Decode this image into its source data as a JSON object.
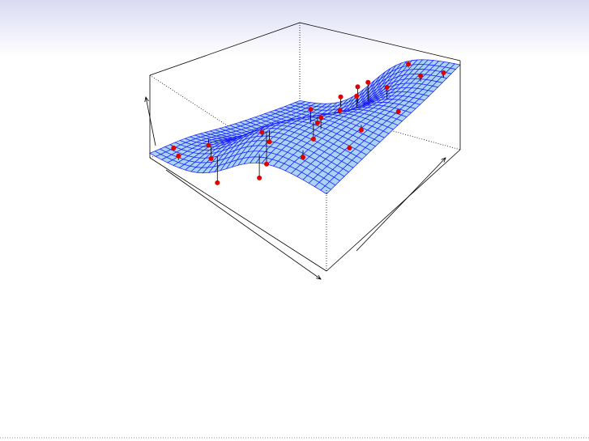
{
  "chart_data": {
    "type": "scatter3d",
    "xlim": [
      0,
      1
    ],
    "ylim": [
      0,
      1
    ],
    "zlim": [
      0,
      1
    ],
    "series": [
      {
        "color": "#e00000",
        "x": [
          0.05,
          0.08,
          0.12,
          0.18,
          0.22,
          0.25,
          0.3,
          0.35,
          0.4,
          0.45,
          0.5,
          0.55,
          0.58,
          0.6,
          0.65,
          0.7,
          0.72,
          0.75,
          0.8,
          0.85,
          0.88,
          0.9,
          0.95,
          0.98,
          0.6,
          0.3
        ],
        "y": [
          0.1,
          0.3,
          0.05,
          0.2,
          0.5,
          0.8,
          0.1,
          0.4,
          0.7,
          0.9,
          0.2,
          0.5,
          0.05,
          0.8,
          0.35,
          0.6,
          0.95,
          0.15,
          0.7,
          0.45,
          0.85,
          0.3,
          0.6,
          0.9,
          0.6,
          0.95
        ],
        "z": [
          0.12,
          0.05,
          0.15,
          0.08,
          0.2,
          0.25,
          0.02,
          0.3,
          0.35,
          0.55,
          0.4,
          0.62,
          0.5,
          0.8,
          0.7,
          0.95,
          0.9,
          0.85,
          1.0,
          0.88,
          0.98,
          0.93,
          0.97,
          1.0,
          0.7,
          0.3
        ]
      }
    ]
  }
}
